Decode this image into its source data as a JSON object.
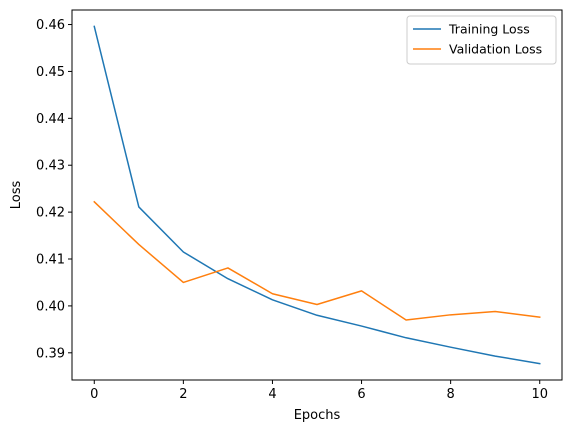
{
  "chart_data": {
    "type": "line",
    "title": "",
    "xlabel": "Epochs",
    "ylabel": "Loss",
    "x": [
      0,
      1,
      2,
      3,
      4,
      5,
      6,
      7,
      8,
      9,
      10
    ],
    "xlim": [
      -0.5,
      10.5
    ],
    "ylim": [
      0.3842,
      0.4631
    ],
    "xticks": [
      0,
      2,
      4,
      6,
      8,
      10
    ],
    "yticks": [
      0.39,
      0.4,
      0.41,
      0.42,
      0.43,
      0.44,
      0.45,
      0.46
    ],
    "xtick_labels": [
      "0",
      "2",
      "4",
      "6",
      "8",
      "10"
    ],
    "ytick_labels": [
      "0.39",
      "0.40",
      "0.41",
      "0.42",
      "0.43",
      "0.44",
      "0.45",
      "0.46"
    ],
    "grid": false,
    "legend_position": "upper right",
    "series": [
      {
        "name": "Training Loss",
        "color": "#1f77b4",
        "values": [
          0.4596,
          0.4211,
          0.4115,
          0.4058,
          0.4013,
          0.398,
          0.3957,
          0.3932,
          0.3912,
          0.3893,
          0.3877
        ]
      },
      {
        "name": "Validation Loss",
        "color": "#ff7f0e",
        "values": [
          0.4222,
          0.4131,
          0.405,
          0.4081,
          0.4026,
          0.4003,
          0.4032,
          0.397,
          0.3981,
          0.3988,
          0.3976
        ]
      }
    ]
  }
}
